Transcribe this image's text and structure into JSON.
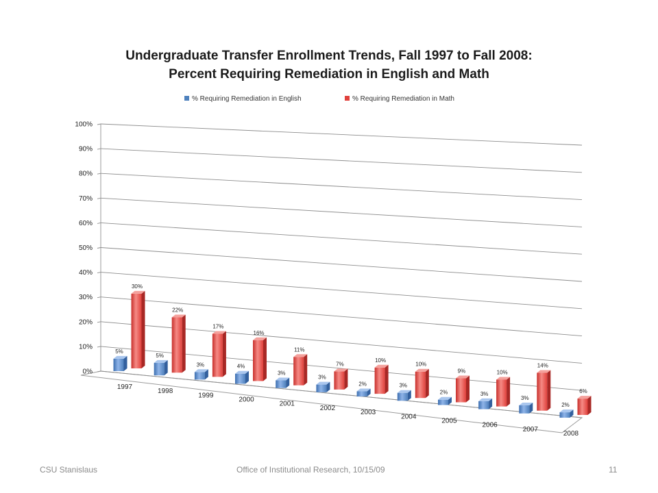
{
  "chart_data": {
    "type": "bar",
    "title": "Undergraduate Transfer Enrollment Trends, Fall 1997 to Fall 2008:",
    "subtitle": "Percent Requiring Remediation in English and Math",
    "categories": [
      "1997",
      "1998",
      "1999",
      "2000",
      "2001",
      "2002",
      "2003",
      "2004",
      "2005",
      "2006",
      "2007",
      "2008"
    ],
    "series": [
      {
        "name": "% Requiring Remediation in English",
        "color": "#4f81bd",
        "values": [
          5,
          5,
          3,
          4,
          3,
          3,
          2,
          3,
          2,
          3,
          3,
          2
        ],
        "labels": [
          "5%",
          "5%",
          "3%",
          "4%",
          "3%",
          "3%",
          "2%",
          "3%",
          "2%",
          "3%",
          "3%",
          "2%"
        ]
      },
      {
        "name": "% Requiring Remediation in Math",
        "color": "#e0413c",
        "values": [
          30,
          22,
          17,
          16,
          11,
          7,
          10,
          10,
          9,
          10,
          14,
          6
        ],
        "labels": [
          "30%",
          "22%",
          "17%",
          "16%",
          "11%",
          "7%",
          "10%",
          "10%",
          "9%",
          "10%",
          "14%",
          "6%"
        ]
      }
    ],
    "yticks": [
      "0%",
      "10%",
      "20%",
      "30%",
      "40%",
      "50%",
      "60%",
      "70%",
      "80%",
      "90%",
      "100%"
    ],
    "ylim": [
      0,
      100
    ],
    "grid": true,
    "legend": "top",
    "style": "3d-clustered-column"
  },
  "footer": {
    "left": "CSU Stanislaus",
    "center": "Office of Institutional  Research, 10/15/09",
    "page": "11"
  }
}
